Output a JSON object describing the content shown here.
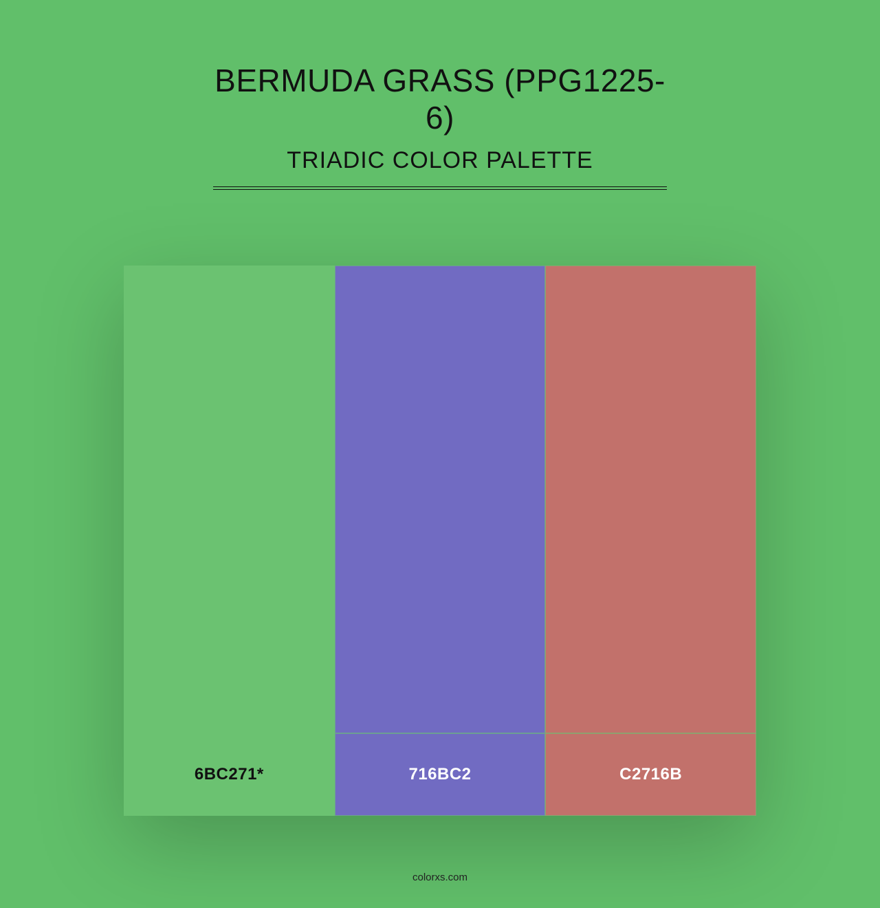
{
  "background_color": "#61bf6a",
  "title": "BERMUDA GRASS (PPG1225-6)",
  "subtitle": "TRIADIC COLOR PALETTE",
  "title_fontsize": 46,
  "subtitle_fontsize": 34,
  "title_color": "#111111",
  "divider_color": "#111111",
  "palette": {
    "type": "color-swatch-row",
    "swatch_height": 680,
    "label_height": 120,
    "label_fontsize": 24,
    "gap_color": "#6bc271",
    "shadow": "0 40px 120px rgba(0,0,0,0.22)",
    "colors": [
      {
        "hex": "#6bc271",
        "label": "6BC271*",
        "label_text_color": "#111111"
      },
      {
        "hex": "#716bc2",
        "label": "716BC2",
        "label_text_color": "#ffffff"
      },
      {
        "hex": "#c2716b",
        "label": "C2716B",
        "label_text_color": "#ffffff"
      }
    ]
  },
  "footer": "colorxs.com",
  "footer_color": "#222222"
}
